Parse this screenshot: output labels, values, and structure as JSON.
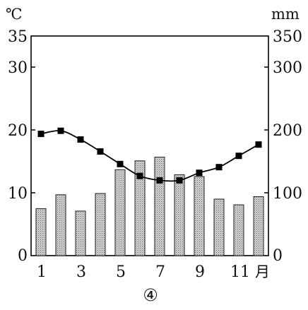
{
  "chart_data": {
    "type": "bar-line climate chart",
    "caption": "④",
    "left_axis_unit": "℃",
    "right_axis_unit": "mm",
    "month_suffix": "月",
    "left_ylim": [
      0,
      35
    ],
    "right_ylim": [
      0,
      350
    ],
    "left_ticks": [
      "0",
      "10",
      "20",
      "30",
      "35"
    ],
    "right_ticks": [
      "0",
      "100",
      "200",
      "300",
      "350"
    ],
    "x_tick_labels": [
      "1",
      "3",
      "5",
      "7",
      "9",
      "11"
    ],
    "months": [
      1,
      2,
      3,
      4,
      5,
      6,
      7,
      8,
      9,
      10,
      11,
      12
    ],
    "precipitation_mm": [
      75,
      97,
      71,
      99,
      137,
      151,
      157,
      129,
      126,
      90,
      81,
      94
    ],
    "temperature_c": [
      19.4,
      19.9,
      18.5,
      16.6,
      14.6,
      12.7,
      12.0,
      12.0,
      13.2,
      14.1,
      15.9,
      17.7
    ],
    "grid": false,
    "colors": {
      "bar_fill": "#bdbdbd",
      "line": "#000000",
      "marker": "#000000"
    }
  }
}
